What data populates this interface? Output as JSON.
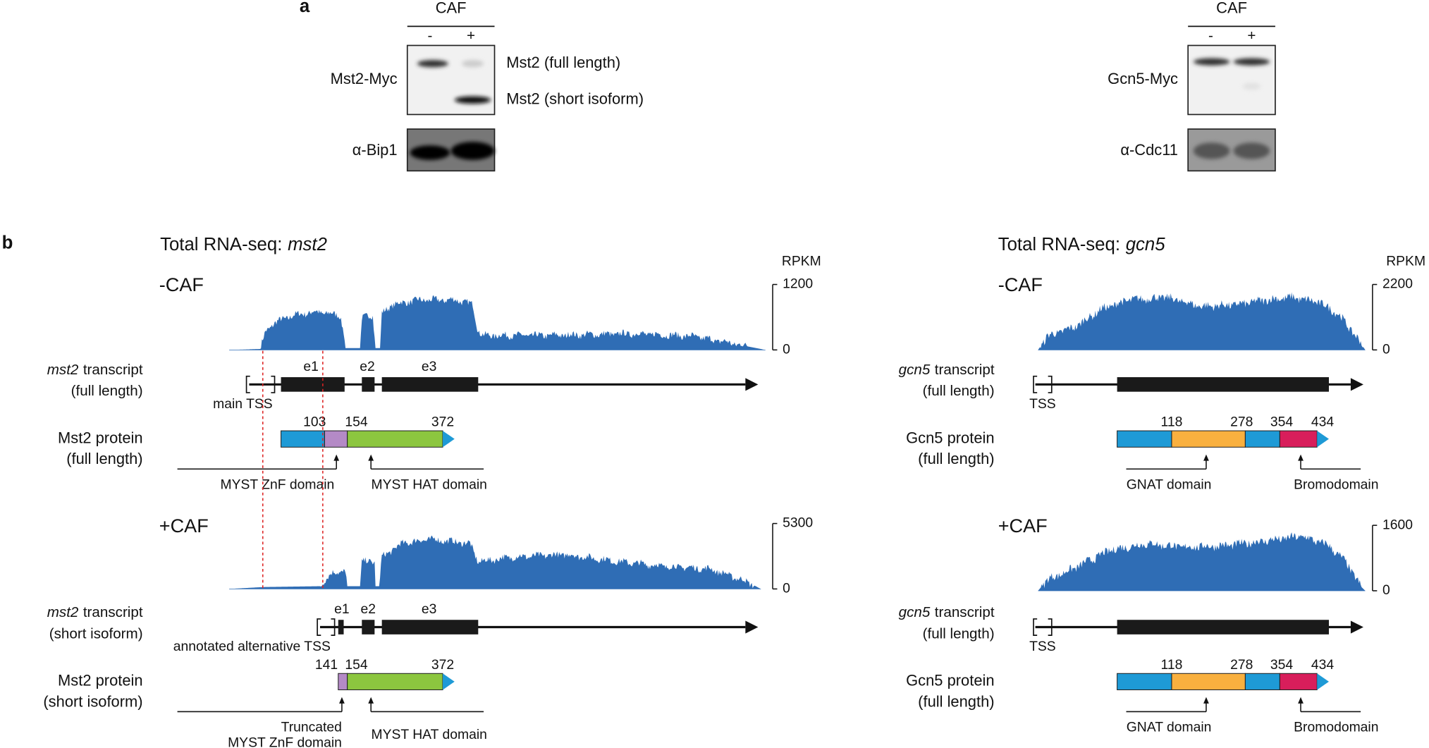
{
  "panel_a": {
    "label": "a",
    "mst2": {
      "header": "CAF",
      "lanes": [
        "-",
        "+"
      ],
      "blot_labels": [
        "Mst2-Myc",
        "α-Bip1"
      ],
      "band_labels": [
        "Mst2 (full length)",
        "Mst2 (short isoform)"
      ]
    },
    "gcn5": {
      "header": "CAF",
      "lanes": [
        "-",
        "+"
      ],
      "blot_labels": [
        "Gcn5-Myc",
        "α-Cdc11"
      ]
    }
  },
  "panel_b": {
    "label": "b",
    "mst2": {
      "title": "Total RNA-seq:",
      "gene": "mst2",
      "unit": "RPKM",
      "conditions": [
        {
          "name": "-CAF",
          "axis_max": 1200,
          "axis_min": 0,
          "transcript": {
            "word": "transcript",
            "variant": "(full length)",
            "exons": [
              "e1",
              "e2",
              "e3"
            ],
            "tss": "main TSS"
          },
          "protein": {
            "name": "Mst2 protein",
            "variant": "(full length)",
            "positions": [
              103,
              154,
              372
            ],
            "domains": [
              {
                "lines": [
                  "MYST ZnF domain"
                ]
              },
              {
                "lines": [
                  "MYST HAT domain"
                ]
              }
            ]
          }
        },
        {
          "name": "+CAF",
          "axis_max": 5300,
          "axis_min": 0,
          "transcript": {
            "word": "transcript",
            "variant": "(short isoform)",
            "exons": [
              "e1",
              "e2",
              "e3"
            ],
            "tss": "annotated alternative TSS"
          },
          "protein": {
            "name": "Mst2 protein",
            "variant": "(short isoform)",
            "positions": [
              141,
              154,
              372
            ],
            "domains": [
              {
                "lines": [
                  "Truncated",
                  "MYST ZnF domain"
                ]
              },
              {
                "lines": [
                  "MYST HAT domain"
                ]
              }
            ]
          }
        }
      ]
    },
    "gcn5": {
      "title": "Total RNA-seq:",
      "gene": "gcn5",
      "unit": "RPKM",
      "conditions": [
        {
          "name": "-CAF",
          "axis_max": 2200,
          "axis_min": 0,
          "transcript": {
            "word": "transcript",
            "variant": "(full length)",
            "tss": "TSS"
          },
          "protein": {
            "name": "Gcn5 protein",
            "variant": "(full length)",
            "positions": [
              118,
              278,
              354,
              434
            ],
            "domains": [
              {
                "lines": [
                  "GNAT domain"
                ]
              },
              {
                "lines": [
                  "Bromodomain"
                ]
              }
            ]
          }
        },
        {
          "name": "+CAF",
          "axis_max": 1600,
          "axis_min": 0,
          "transcript": {
            "word": "transcript",
            "variant": "(full length)",
            "tss": "TSS"
          },
          "protein": {
            "name": "Gcn5 protein",
            "variant": "(full length)",
            "positions": [
              118,
              278,
              354,
              434
            ],
            "domains": [
              {
                "lines": [
                  "GNAT domain"
                ]
              },
              {
                "lines": [
                  "Bromodomain"
                ]
              }
            ]
          }
        }
      ]
    }
  }
}
